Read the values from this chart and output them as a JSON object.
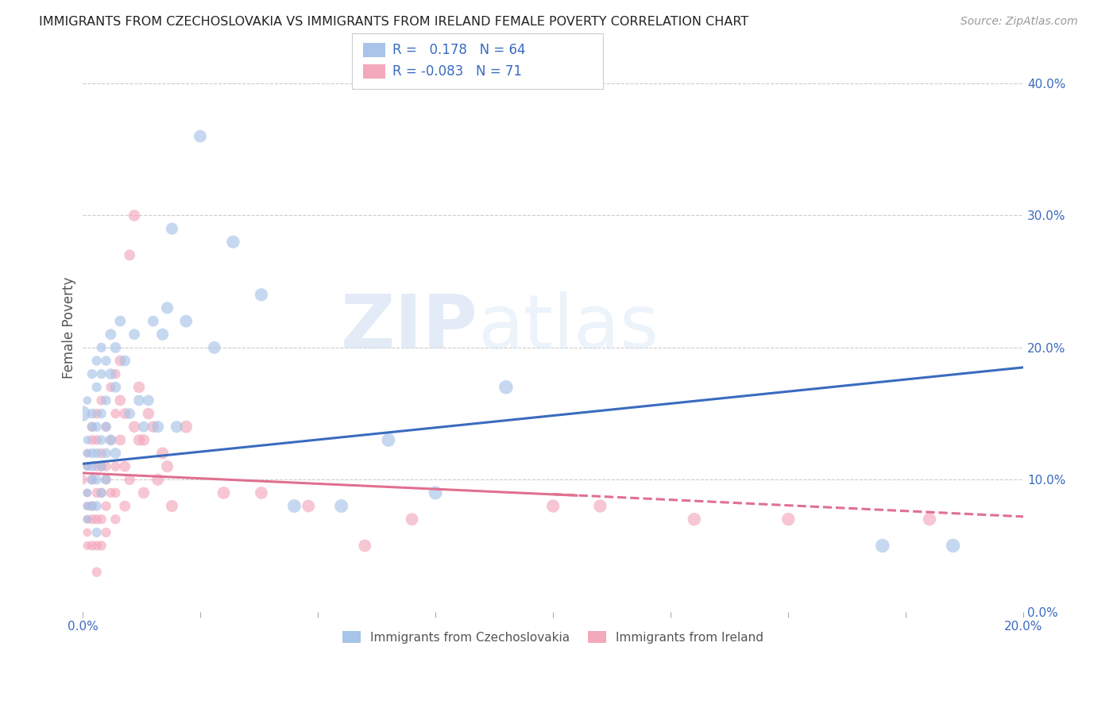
{
  "title": "IMMIGRANTS FROM CZECHOSLOVAKIA VS IMMIGRANTS FROM IRELAND FEMALE POVERTY CORRELATION CHART",
  "source": "Source: ZipAtlas.com",
  "ylabel": "Female Poverty",
  "legend_label1": "Immigrants from Czechoslovakia",
  "legend_label2": "Immigrants from Ireland",
  "R1": 0.178,
  "N1": 64,
  "R2": -0.083,
  "N2": 71,
  "xlim": [
    0.0,
    0.2
  ],
  "ylim": [
    0.0,
    0.43
  ],
  "color1": "#a8c4e8",
  "color2": "#f4a8bc",
  "trend1_color": "#3a6bbf",
  "trend2_color": "#e07090",
  "watermark_zip": "ZIP",
  "watermark_atlas": "atlas",
  "czecho_x": [
    0.0,
    0.001,
    0.001,
    0.001,
    0.001,
    0.001,
    0.001,
    0.001,
    0.002,
    0.002,
    0.002,
    0.002,
    0.002,
    0.002,
    0.002,
    0.003,
    0.003,
    0.003,
    0.003,
    0.003,
    0.003,
    0.003,
    0.004,
    0.004,
    0.004,
    0.004,
    0.004,
    0.004,
    0.005,
    0.005,
    0.005,
    0.005,
    0.005,
    0.006,
    0.006,
    0.006,
    0.007,
    0.007,
    0.007,
    0.008,
    0.009,
    0.01,
    0.011,
    0.012,
    0.013,
    0.014,
    0.015,
    0.016,
    0.017,
    0.018,
    0.019,
    0.02,
    0.022,
    0.025,
    0.028,
    0.032,
    0.038,
    0.045,
    0.055,
    0.065,
    0.075,
    0.09,
    0.17,
    0.185
  ],
  "czecho_y": [
    0.15,
    0.12,
    0.08,
    0.16,
    0.11,
    0.09,
    0.13,
    0.07,
    0.18,
    0.15,
    0.12,
    0.1,
    0.08,
    0.14,
    0.11,
    0.19,
    0.17,
    0.14,
    0.12,
    0.1,
    0.08,
    0.06,
    0.2,
    0.18,
    0.15,
    0.13,
    0.11,
    0.09,
    0.19,
    0.16,
    0.14,
    0.12,
    0.1,
    0.21,
    0.18,
    0.13,
    0.2,
    0.17,
    0.12,
    0.22,
    0.19,
    0.15,
    0.21,
    0.16,
    0.14,
    0.16,
    0.22,
    0.14,
    0.21,
    0.23,
    0.29,
    0.14,
    0.22,
    0.36,
    0.2,
    0.28,
    0.24,
    0.08,
    0.08,
    0.13,
    0.09,
    0.17,
    0.05,
    0.05
  ],
  "czecho_size": [
    200,
    60,
    60,
    60,
    60,
    60,
    60,
    60,
    80,
    80,
    80,
    80,
    80,
    80,
    80,
    80,
    80,
    80,
    80,
    80,
    80,
    80,
    80,
    80,
    80,
    80,
    80,
    80,
    80,
    80,
    80,
    80,
    80,
    100,
    100,
    100,
    100,
    100,
    100,
    100,
    100,
    100,
    100,
    100,
    100,
    100,
    100,
    120,
    120,
    120,
    120,
    120,
    130,
    130,
    130,
    140,
    140,
    150,
    150,
    150,
    150,
    160,
    160,
    160
  ],
  "ireland_x": [
    0.0,
    0.001,
    0.001,
    0.001,
    0.001,
    0.001,
    0.001,
    0.001,
    0.002,
    0.002,
    0.002,
    0.002,
    0.002,
    0.002,
    0.003,
    0.003,
    0.003,
    0.003,
    0.003,
    0.003,
    0.003,
    0.004,
    0.004,
    0.004,
    0.004,
    0.004,
    0.004,
    0.005,
    0.005,
    0.005,
    0.005,
    0.005,
    0.006,
    0.006,
    0.006,
    0.007,
    0.007,
    0.007,
    0.007,
    0.007,
    0.008,
    0.008,
    0.008,
    0.009,
    0.009,
    0.009,
    0.01,
    0.01,
    0.011,
    0.011,
    0.012,
    0.012,
    0.013,
    0.013,
    0.014,
    0.015,
    0.016,
    0.017,
    0.018,
    0.019,
    0.022,
    0.03,
    0.038,
    0.048,
    0.06,
    0.07,
    0.1,
    0.11,
    0.13,
    0.15,
    0.18
  ],
  "ireland_y": [
    0.1,
    0.09,
    0.07,
    0.12,
    0.05,
    0.08,
    0.11,
    0.06,
    0.13,
    0.1,
    0.08,
    0.05,
    0.14,
    0.07,
    0.15,
    0.11,
    0.09,
    0.07,
    0.13,
    0.05,
    0.03,
    0.16,
    0.12,
    0.09,
    0.07,
    0.05,
    0.11,
    0.14,
    0.11,
    0.08,
    0.06,
    0.1,
    0.17,
    0.13,
    0.09,
    0.18,
    0.15,
    0.11,
    0.09,
    0.07,
    0.19,
    0.16,
    0.13,
    0.15,
    0.11,
    0.08,
    0.27,
    0.1,
    0.3,
    0.14,
    0.17,
    0.13,
    0.13,
    0.09,
    0.15,
    0.14,
    0.1,
    0.12,
    0.11,
    0.08,
    0.14,
    0.09,
    0.09,
    0.08,
    0.05,
    0.07,
    0.08,
    0.08,
    0.07,
    0.07,
    0.07
  ],
  "ireland_size": [
    80,
    60,
    60,
    60,
    60,
    60,
    60,
    60,
    80,
    80,
    80,
    80,
    80,
    80,
    80,
    80,
    80,
    80,
    80,
    80,
    80,
    80,
    80,
    80,
    80,
    80,
    80,
    80,
    80,
    80,
    80,
    80,
    80,
    80,
    80,
    80,
    80,
    80,
    80,
    80,
    100,
    100,
    100,
    100,
    100,
    100,
    100,
    100,
    110,
    110,
    110,
    110,
    110,
    110,
    110,
    110,
    120,
    120,
    120,
    120,
    130,
    130,
    130,
    130,
    130,
    130,
    140,
    140,
    140,
    140,
    140
  ]
}
